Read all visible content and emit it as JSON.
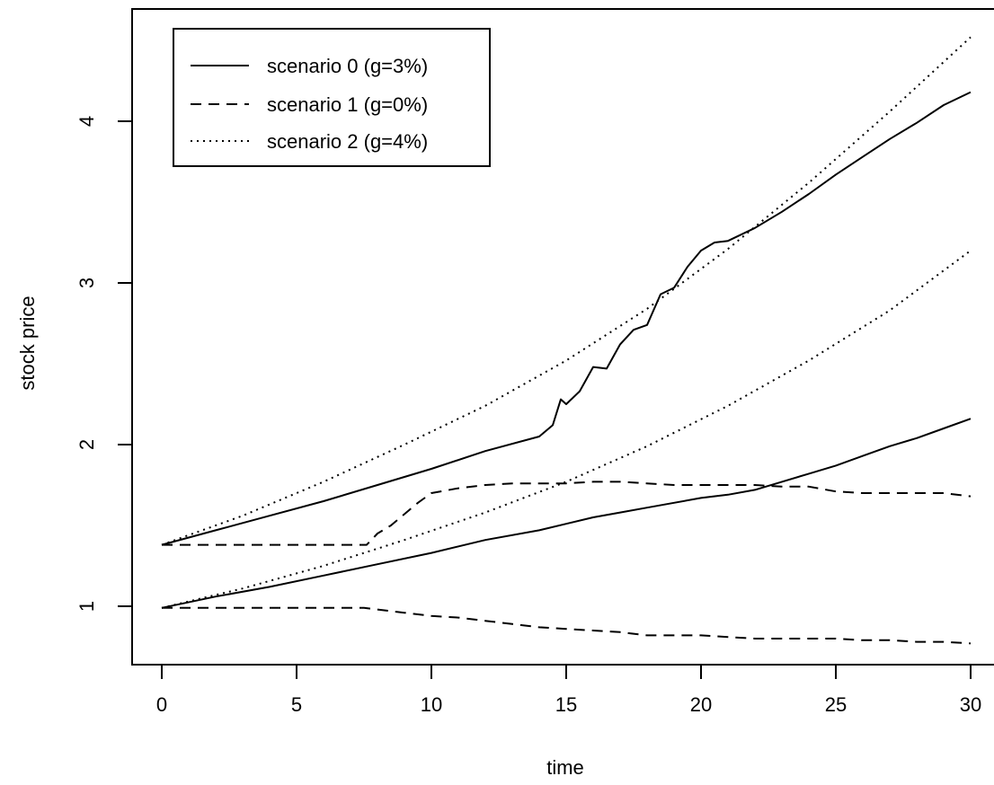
{
  "chart_data": {
    "type": "line",
    "title": "",
    "xlabel": "time",
    "ylabel": "stock price",
    "xlim": [
      0,
      30
    ],
    "ylim": [
      0.6,
      4.7
    ],
    "xticks": [
      0,
      5,
      10,
      15,
      20,
      25,
      30
    ],
    "yticks": [
      1,
      2,
      3,
      4
    ],
    "grid": false,
    "legend_position": "top-left",
    "legend": [
      {
        "label": "scenario 0 (g=3%)",
        "style": "solid"
      },
      {
        "label": "scenario 1 (g=0%)",
        "style": "dashed"
      },
      {
        "label": "scenario 2 (g=4%)",
        "style": "dotted"
      }
    ],
    "series": [
      {
        "style": "solid",
        "x": [
          0,
          2,
          4,
          6,
          8,
          10,
          12,
          14,
          14.5,
          14.8,
          15,
          15.5,
          16,
          16.5,
          17,
          17.5,
          18,
          18.5,
          19,
          19.5,
          20,
          20.5,
          21,
          22,
          23,
          24,
          25,
          26,
          27,
          28,
          29,
          30
        ],
        "y": [
          1.38,
          1.47,
          1.56,
          1.65,
          1.75,
          1.85,
          1.96,
          2.05,
          2.12,
          2.28,
          2.25,
          2.33,
          2.48,
          2.47,
          2.62,
          2.71,
          2.74,
          2.93,
          2.97,
          3.1,
          3.2,
          3.25,
          3.26,
          3.34,
          3.44,
          3.55,
          3.67,
          3.78,
          3.89,
          3.99,
          4.1,
          4.18
        ]
      },
      {
        "style": "solid",
        "x": [
          0,
          2,
          4,
          6,
          8,
          10,
          12,
          14,
          15,
          16,
          17,
          18,
          19,
          20,
          21,
          22,
          23,
          24,
          25,
          26,
          27,
          28,
          29,
          30
        ],
        "y": [
          0.99,
          1.06,
          1.12,
          1.19,
          1.26,
          1.33,
          1.41,
          1.47,
          1.51,
          1.55,
          1.58,
          1.61,
          1.64,
          1.67,
          1.69,
          1.72,
          1.77,
          1.82,
          1.87,
          1.93,
          1.99,
          2.04,
          2.1,
          2.16
        ]
      },
      {
        "style": "dashed",
        "x": [
          0,
          2,
          4,
          6,
          7.6,
          8,
          8.5,
          9,
          9.5,
          10,
          11,
          12,
          13,
          14,
          15,
          16,
          17,
          18,
          19,
          20,
          21,
          22,
          23,
          24,
          25,
          26,
          27,
          28,
          29,
          30
        ],
        "y": [
          1.38,
          1.38,
          1.38,
          1.38,
          1.38,
          1.45,
          1.5,
          1.57,
          1.64,
          1.7,
          1.73,
          1.75,
          1.76,
          1.76,
          1.76,
          1.77,
          1.77,
          1.76,
          1.75,
          1.75,
          1.75,
          1.75,
          1.74,
          1.74,
          1.71,
          1.7,
          1.7,
          1.7,
          1.7,
          1.68
        ]
      },
      {
        "style": "dashed",
        "x": [
          0,
          3,
          6,
          7.5,
          8,
          9,
          10,
          11,
          12,
          13,
          14,
          15,
          16,
          17,
          18,
          19,
          20,
          21,
          22,
          23,
          24,
          25,
          26,
          27,
          28,
          29,
          30
        ],
        "y": [
          0.99,
          0.99,
          0.99,
          0.99,
          0.98,
          0.96,
          0.94,
          0.93,
          0.91,
          0.89,
          0.87,
          0.86,
          0.85,
          0.84,
          0.82,
          0.82,
          0.82,
          0.81,
          0.8,
          0.8,
          0.8,
          0.8,
          0.79,
          0.79,
          0.78,
          0.78,
          0.77
        ]
      },
      {
        "style": "dotted",
        "x": [
          0,
          3,
          6,
          9,
          12,
          15,
          18,
          21,
          24,
          27,
          30
        ],
        "y": [
          1.38,
          1.56,
          1.77,
          2.0,
          2.24,
          2.52,
          2.84,
          3.21,
          3.62,
          4.06,
          4.52
        ]
      },
      {
        "style": "dotted",
        "x": [
          0,
          3,
          6,
          9,
          12,
          15,
          18,
          21,
          24,
          27,
          30
        ],
        "y": [
          0.99,
          1.11,
          1.25,
          1.41,
          1.58,
          1.77,
          1.99,
          2.24,
          2.52,
          2.83,
          3.2
        ]
      }
    ]
  }
}
